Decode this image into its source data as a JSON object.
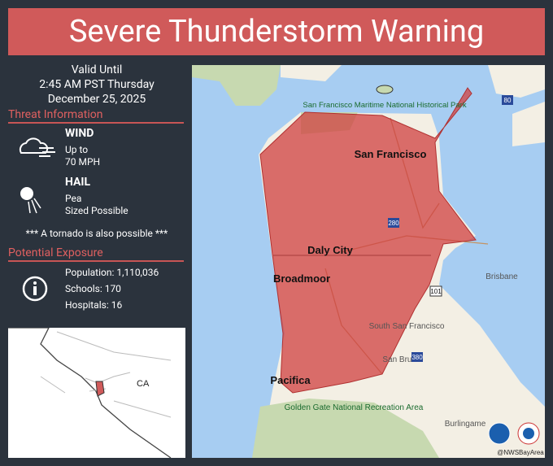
{
  "header": {
    "title": "Severe Thunderstorm Warning"
  },
  "valid_until": [
    "Valid Until",
    "2:45 AM PST Thursday",
    "December 25, 2025"
  ],
  "threat": {
    "heading": "Threat Information",
    "wind": {
      "label": "WIND",
      "lines": [
        "Up to",
        "70  MPH"
      ]
    },
    "hail": {
      "label": "HAIL",
      "lines": [
        "Pea",
        "Sized Possible"
      ]
    },
    "note": "*** A tornado is also possible ***"
  },
  "exposure": {
    "heading": "Potential Exposure",
    "lines": [
      "Population: 1,110,036",
      "Schools: 170",
      "Hospitals: 16"
    ]
  },
  "inset": {
    "label": "CA"
  },
  "map": {
    "labels": [
      "San Francisco Maritime National Historical Park",
      "San Francisco",
      "Daly City",
      "Broadmoor",
      "Brisbane",
      "South San Francisco",
      "San Bruno",
      "Pacifica",
      "Golden Gate National Recreation Area",
      "Burlingame"
    ],
    "shields": [
      "80",
      "280",
      "101",
      "380"
    ],
    "credit": "@NWSBayArea"
  }
}
